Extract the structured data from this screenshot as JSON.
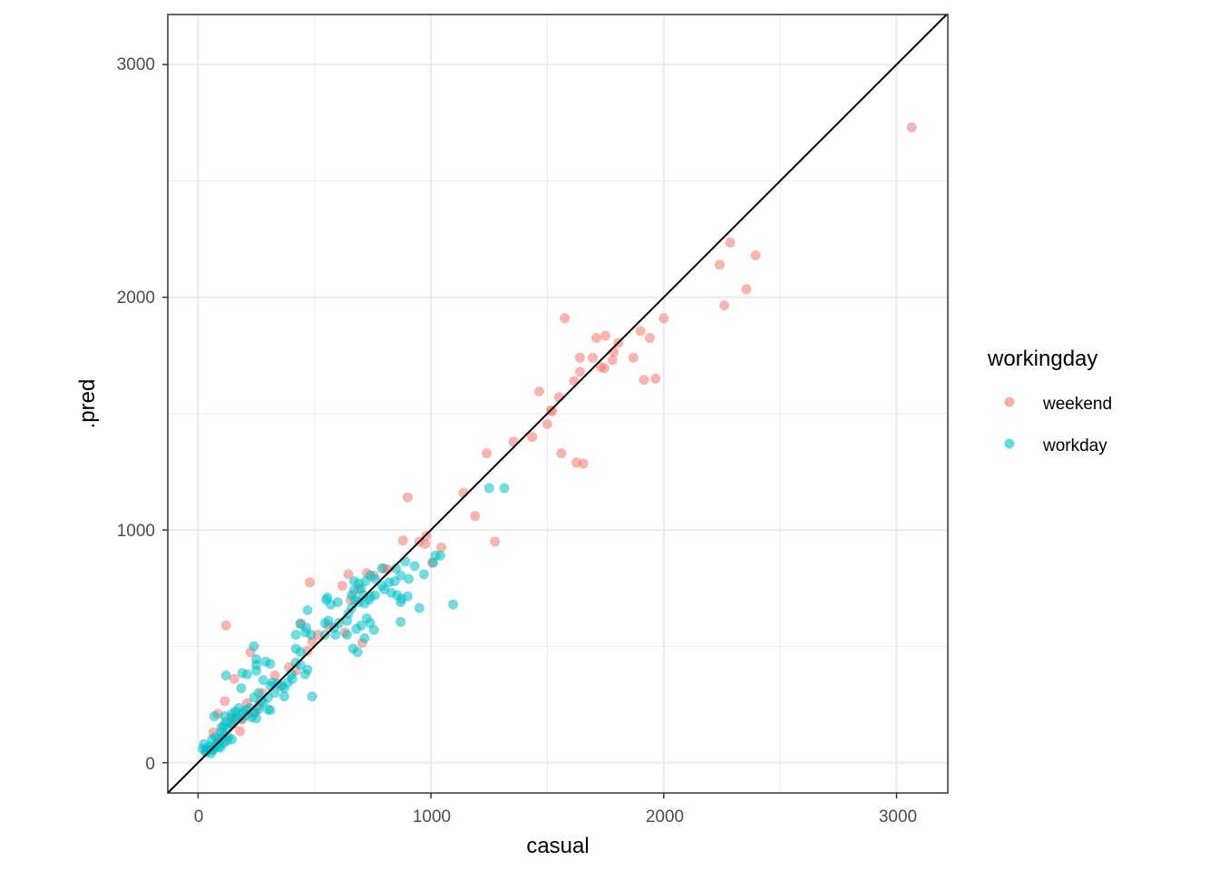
{
  "chart_data": {
    "type": "scatter",
    "title": "",
    "xlabel": "casual",
    "ylabel": ".pred",
    "xlim": [
      -130,
      3220
    ],
    "ylim": [
      -130,
      3215
    ],
    "x_ticks": [
      0,
      1000,
      2000,
      3000
    ],
    "y_ticks": [
      0,
      1000,
      2000,
      3000
    ],
    "x_tick_labels": [
      "0",
      "1000",
      "2000",
      "3000"
    ],
    "y_tick_labels": [
      "0",
      "1000",
      "2000",
      "3000"
    ],
    "grid": true,
    "reference_line": {
      "type": "identity",
      "slope": 1,
      "intercept": 0,
      "color": "#000000"
    },
    "legend": {
      "title": "workingday",
      "position": "right",
      "entries": [
        {
          "name": "weekend",
          "color": "#F8766D"
        },
        {
          "name": "workday",
          "color": "#00BFC4"
        }
      ]
    },
    "series": [
      {
        "name": "weekend",
        "color": "#F8766D",
        "points": [
          [
            3065,
            2730
          ],
          [
            2240,
            2140
          ],
          [
            2285,
            2235
          ],
          [
            2395,
            2180
          ],
          [
            2355,
            2035
          ],
          [
            2260,
            1965
          ],
          [
            2000,
            1910
          ],
          [
            1575,
            1910
          ],
          [
            1900,
            1855
          ],
          [
            1750,
            1835
          ],
          [
            1710,
            1825
          ],
          [
            1940,
            1825
          ],
          [
            1805,
            1805
          ],
          [
            1785,
            1765
          ],
          [
            1640,
            1740
          ],
          [
            1695,
            1740
          ],
          [
            1870,
            1740
          ],
          [
            1780,
            1730
          ],
          [
            1730,
            1700
          ],
          [
            1745,
            1695
          ],
          [
            1640,
            1680
          ],
          [
            1615,
            1640
          ],
          [
            1915,
            1645
          ],
          [
            1965,
            1650
          ],
          [
            1465,
            1595
          ],
          [
            1550,
            1570
          ],
          [
            1515,
            1515
          ],
          [
            1520,
            1510
          ],
          [
            1500,
            1455
          ],
          [
            1435,
            1400
          ],
          [
            1355,
            1380
          ],
          [
            1240,
            1330
          ],
          [
            1560,
            1330
          ],
          [
            1625,
            1290
          ],
          [
            1655,
            1285
          ],
          [
            1140,
            1160
          ],
          [
            900,
            1140
          ],
          [
            1190,
            1060
          ],
          [
            1275,
            950
          ],
          [
            980,
            975
          ],
          [
            950,
            950
          ],
          [
            880,
            955
          ],
          [
            975,
            940
          ],
          [
            1045,
            925
          ],
          [
            1005,
            860
          ],
          [
            800,
            835
          ],
          [
            815,
            830
          ],
          [
            725,
            815
          ],
          [
            645,
            810
          ],
          [
            755,
            805
          ],
          [
            480,
            775
          ],
          [
            620,
            760
          ],
          [
            690,
            745
          ],
          [
            655,
            700
          ],
          [
            120,
            590
          ],
          [
            440,
            600
          ],
          [
            630,
            560
          ],
          [
            515,
            550
          ],
          [
            490,
            520
          ],
          [
            705,
            515
          ],
          [
            470,
            480
          ],
          [
            225,
            475
          ],
          [
            390,
            410
          ],
          [
            155,
            360
          ],
          [
            275,
            300
          ],
          [
            210,
            255
          ],
          [
            115,
            265
          ],
          [
            260,
            245
          ],
          [
            85,
            210
          ],
          [
            145,
            195
          ],
          [
            190,
            185
          ],
          [
            150,
            165
          ],
          [
            65,
            130
          ],
          [
            180,
            135
          ],
          [
            110,
            110
          ],
          [
            240,
            215
          ],
          [
            330,
            375
          ],
          [
            420,
            395
          ],
          [
            560,
            590
          ],
          [
            350,
            330
          ]
        ]
      },
      {
        "name": "workday",
        "color": "#00BFC4",
        "points": [
          [
            1250,
            1180
          ],
          [
            1315,
            1180
          ],
          [
            1020,
            890
          ],
          [
            1040,
            890
          ],
          [
            1010,
            860
          ],
          [
            890,
            865
          ],
          [
            790,
            835
          ],
          [
            905,
            790
          ],
          [
            930,
            845
          ],
          [
            970,
            810
          ],
          [
            850,
            835
          ],
          [
            870,
            805
          ],
          [
            845,
            780
          ],
          [
            820,
            775
          ],
          [
            790,
            760
          ],
          [
            760,
            790
          ],
          [
            740,
            805
          ],
          [
            720,
            780
          ],
          [
            690,
            770
          ],
          [
            670,
            780
          ],
          [
            700,
            750
          ],
          [
            670,
            740
          ],
          [
            660,
            720
          ],
          [
            710,
            720
          ],
          [
            740,
            715
          ],
          [
            760,
            720
          ],
          [
            800,
            745
          ],
          [
            830,
            730
          ],
          [
            855,
            720
          ],
          [
            875,
            705
          ],
          [
            900,
            715
          ],
          [
            870,
            690
          ],
          [
            950,
            665
          ],
          [
            1095,
            680
          ],
          [
            735,
            700
          ],
          [
            715,
            685
          ],
          [
            690,
            690
          ],
          [
            675,
            700
          ],
          [
            660,
            665
          ],
          [
            645,
            640
          ],
          [
            640,
            610
          ],
          [
            725,
            620
          ],
          [
            740,
            600
          ],
          [
            700,
            590
          ],
          [
            680,
            575
          ],
          [
            755,
            570
          ],
          [
            640,
            550
          ],
          [
            590,
            550
          ],
          [
            545,
            550
          ],
          [
            545,
            600
          ],
          [
            560,
            610
          ],
          [
            585,
            580
          ],
          [
            605,
            600
          ],
          [
            550,
            700
          ],
          [
            555,
            710
          ],
          [
            570,
            680
          ],
          [
            600,
            690
          ],
          [
            470,
            655
          ],
          [
            465,
            580
          ],
          [
            485,
            550
          ],
          [
            460,
            560
          ],
          [
            440,
            595
          ],
          [
            420,
            550
          ],
          [
            420,
            490
          ],
          [
            440,
            475
          ],
          [
            665,
            490
          ],
          [
            685,
            475
          ],
          [
            715,
            535
          ],
          [
            870,
            605
          ],
          [
            490,
            285
          ],
          [
            470,
            400
          ],
          [
            460,
            380
          ],
          [
            440,
            420
          ],
          [
            420,
            430
          ],
          [
            400,
            380
          ],
          [
            405,
            360
          ],
          [
            385,
            345
          ],
          [
            360,
            330
          ],
          [
            370,
            285
          ],
          [
            340,
            340
          ],
          [
            320,
            345
          ],
          [
            310,
            330
          ],
          [
            300,
            280
          ],
          [
            290,
            435
          ],
          [
            310,
            425
          ],
          [
            250,
            420
          ],
          [
            250,
            445
          ],
          [
            240,
            500
          ],
          [
            210,
            380
          ],
          [
            190,
            385
          ],
          [
            120,
            375
          ],
          [
            185,
            320
          ],
          [
            250,
            395
          ],
          [
            280,
            355
          ],
          [
            260,
            300
          ],
          [
            240,
            280
          ],
          [
            270,
            265
          ],
          [
            300,
            230
          ],
          [
            310,
            225
          ],
          [
            260,
            230
          ],
          [
            245,
            215
          ],
          [
            220,
            235
          ],
          [
            205,
            225
          ],
          [
            190,
            215
          ],
          [
            175,
            235
          ],
          [
            160,
            220
          ],
          [
            145,
            210
          ],
          [
            165,
            200
          ],
          [
            185,
            190
          ],
          [
            155,
            185
          ],
          [
            140,
            170
          ],
          [
            120,
            175
          ],
          [
            130,
            150
          ],
          [
            110,
            160
          ],
          [
            100,
            150
          ],
          [
            100,
            130
          ],
          [
            115,
            120
          ],
          [
            130,
            110
          ],
          [
            145,
            100
          ],
          [
            125,
            95
          ],
          [
            110,
            85
          ],
          [
            95,
            100
          ],
          [
            85,
            90
          ],
          [
            80,
            75
          ],
          [
            90,
            70
          ],
          [
            95,
            65
          ],
          [
            70,
            65
          ],
          [
            60,
            55
          ],
          [
            50,
            70
          ],
          [
            40,
            60
          ],
          [
            35,
            45
          ],
          [
            30,
            50
          ],
          [
            45,
            55
          ],
          [
            55,
            40
          ],
          [
            65,
            55
          ],
          [
            20,
            60
          ],
          [
            25,
            80
          ],
          [
            75,
            110
          ],
          [
            60,
            100
          ],
          [
            70,
            200
          ],
          [
            115,
            200
          ],
          [
            210,
            205
          ],
          [
            230,
            195
          ],
          [
            250,
            190
          ],
          [
            280,
            260
          ],
          [
            330,
            300
          ],
          [
            370,
            320
          ]
        ]
      }
    ]
  }
}
